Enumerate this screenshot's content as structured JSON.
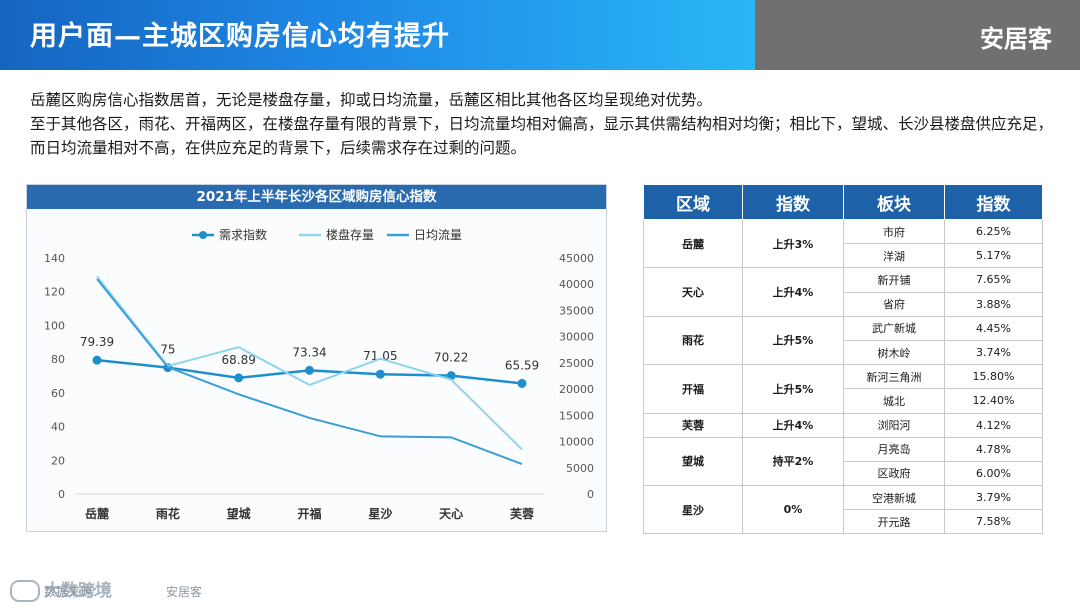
{
  "header": {
    "title": "用户面—主城区购房信心均有提升",
    "brand": "安居客"
  },
  "intro": {
    "line1": "岳麓区购房信心指数居首，无论是楼盘存量，抑或日均流量，岳麓区相比其他各区均呈现绝对优势。",
    "line2": "至于其他各区，雨花、开福两区，在楼盘存量有限的背景下，日均流量均相对偏高，显示其供需结构相对均衡；相比下，望城、长沙县楼盘供应充足，而日均流量相对不高，在供应充足的背景下，后续需求存在过剩的问题。"
  },
  "chart_data": {
    "type": "line",
    "title": "2021年上半年长沙各区域购房信心指数",
    "categories": [
      "岳麓",
      "雨花",
      "望城",
      "开福",
      "星沙",
      "天心",
      "芙蓉"
    ],
    "y_left": {
      "ylim": [
        0,
        140
      ],
      "ticks": [
        0,
        20,
        40,
        60,
        80,
        100,
        120,
        140
      ]
    },
    "y_right": {
      "ylim": [
        0,
        45000
      ],
      "ticks": [
        0,
        5000,
        10000,
        15000,
        20000,
        25000,
        30000,
        35000,
        40000,
        45000
      ]
    },
    "legend_position": "top-left",
    "series": [
      {
        "name": "需求指数",
        "axis": "left",
        "color": "#1f8fcb",
        "markers": true,
        "labels": true,
        "values": [
          79.39,
          75,
          68.89,
          73.34,
          71.05,
          70.22,
          65.59
        ]
      },
      {
        "name": "楼盘存量",
        "axis": "right",
        "color": "#8dd4ee",
        "markers": false,
        "labels": false,
        "values": [
          41500,
          24400,
          28000,
          20800,
          25800,
          21800,
          8500
        ]
      },
      {
        "name": "日均流量",
        "axis": "right",
        "color": "#3a9fd6",
        "markers": false,
        "labels": false,
        "values": [
          41000,
          24200,
          19000,
          14500,
          11000,
          10800,
          5700
        ]
      }
    ],
    "data_labels": [
      "79.39",
      "75",
      "68.89",
      "73.34",
      "71.05",
      "70.22",
      "65.59"
    ]
  },
  "table": {
    "headers": [
      "区域",
      "指数",
      "板块",
      "指数"
    ],
    "groups": [
      {
        "region": "岳麓",
        "trend": "上升3%",
        "rows": [
          [
            "市府",
            "6.25%"
          ],
          [
            "洋湖",
            "5.17%"
          ]
        ]
      },
      {
        "region": "天心",
        "trend": "上升4%",
        "rows": [
          [
            "新开铺",
            "7.65%"
          ],
          [
            "省府",
            "3.88%"
          ]
        ]
      },
      {
        "region": "雨花",
        "trend": "上升5%",
        "rows": [
          [
            "武广新城",
            "4.45%"
          ],
          [
            "树木岭",
            "3.74%"
          ]
        ]
      },
      {
        "region": "开福",
        "trend": "上升5%",
        "rows": [
          [
            "新河三角洲",
            "15.80%"
          ],
          [
            "城北",
            "12.40%"
          ]
        ]
      },
      {
        "region": "芙蓉",
        "trend": "上升4%",
        "rows": [
          [
            "浏阳河",
            "4.12%"
          ]
        ]
      },
      {
        "region": "望城",
        "trend": "持平2%",
        "rows": [
          [
            "月亮岛",
            "4.78%"
          ],
          [
            "区政府",
            "6.00%"
          ]
        ]
      },
      {
        "region": "星沙",
        "trend": "0%",
        "rows": [
          [
            "空港新城",
            "3.79%"
          ],
          [
            "开元路",
            "7.58%"
          ]
        ]
      }
    ]
  },
  "footer": {
    "watermark": "大数跨境",
    "source_label": "数据来源：",
    "source_value": "安居客"
  },
  "colors": {
    "header_blue": "#1e88e5",
    "header_gray": "#707070",
    "table_header": "#1d62a8",
    "chart_title_bar": "#2a6bb0"
  }
}
